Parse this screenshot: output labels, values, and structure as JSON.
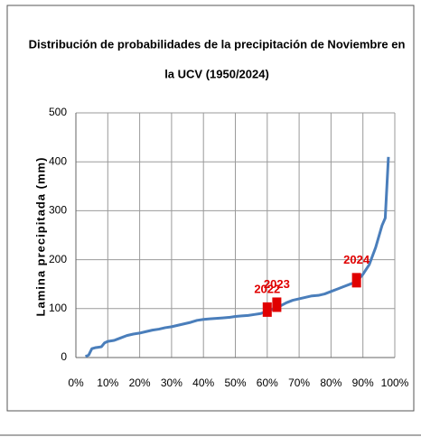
{
  "chart_data": {
    "type": "line",
    "title_lines": [
      "Distribución de probabilidades de la precipitación de Noviembre en",
      "la UCV (1950/2024)"
    ],
    "y_label": "Lamina precipitada (mm)",
    "color": "#4a7ebb",
    "x": [
      3,
      4,
      5,
      6,
      7,
      8,
      9,
      10,
      12,
      14,
      16,
      18,
      20,
      22,
      24,
      26,
      28,
      30,
      32,
      34,
      36,
      38,
      40,
      42,
      44,
      46,
      48,
      50,
      52,
      54,
      56,
      58,
      60,
      62,
      64,
      66,
      68,
      70,
      72,
      74,
      76,
      78,
      80,
      82,
      84,
      86,
      88,
      90,
      92,
      94,
      96,
      97,
      98
    ],
    "values": [
      2,
      5,
      18,
      20,
      21,
      22,
      30,
      33,
      35,
      40,
      45,
      48,
      50,
      53,
      56,
      58,
      61,
      63,
      66,
      69,
      72,
      76,
      78,
      79,
      80,
      81,
      82,
      84,
      85,
      86,
      88,
      90,
      95,
      100,
      105,
      112,
      117,
      120,
      123,
      126,
      127,
      130,
      135,
      140,
      145,
      150,
      155,
      170,
      190,
      225,
      270,
      285,
      410
    ],
    "highlights": [
      {
        "label": "2022",
        "x": 60,
        "y": 98,
        "color": "#e00000"
      },
      {
        "label": "2023",
        "x": 63,
        "y": 108,
        "color": "#e00000"
      },
      {
        "label": "2024",
        "x": 88,
        "y": 158,
        "color": "#e00000"
      }
    ],
    "xlim": [
      0,
      100
    ],
    "xticks": [
      {
        "value": 0,
        "label": "0%"
      },
      {
        "value": 10,
        "label": "10%"
      },
      {
        "value": 20,
        "label": "20%"
      },
      {
        "value": 30,
        "label": "30%"
      },
      {
        "value": 40,
        "label": "40%"
      },
      {
        "value": 50,
        "label": "50%"
      },
      {
        "value": 60,
        "label": "60%"
      },
      {
        "value": 70,
        "label": "70%"
      },
      {
        "value": 80,
        "label": "80%"
      },
      {
        "value": 90,
        "label": "90%"
      },
      {
        "value": 100,
        "label": "100%"
      }
    ],
    "ylim": [
      0,
      500
    ],
    "yticks": [
      0,
      100,
      200,
      300,
      400,
      500
    ],
    "grid": true
  }
}
